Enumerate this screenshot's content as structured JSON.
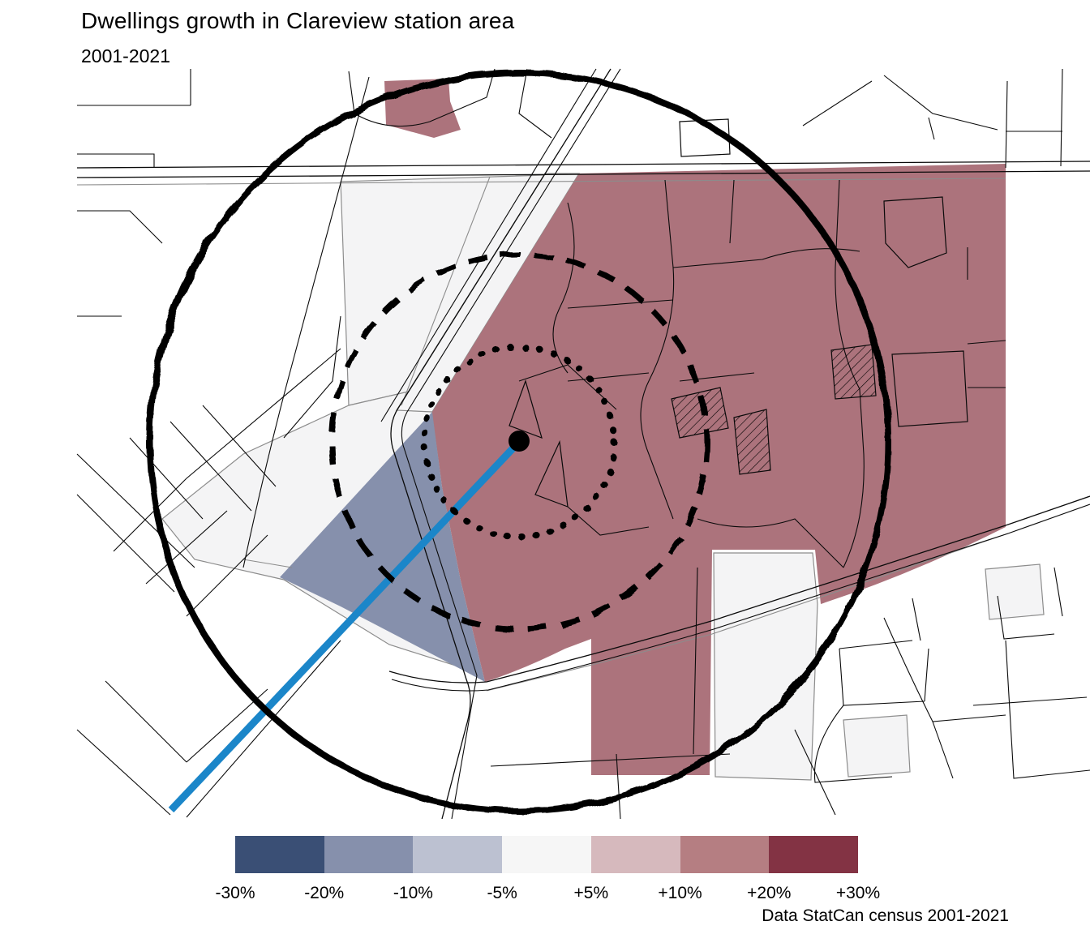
{
  "title": "Dwellings growth in Clareview station area",
  "subtitle": "2001-2021",
  "attribution": "Data StatCan census 2001-2021",
  "legend": {
    "bin_colors": [
      "#3A4F75",
      "#8690AC",
      "#BCC1D1",
      "#F6F6F6",
      "#D6B9BD",
      "#B57E82",
      "#833344"
    ],
    "tick_labels": [
      "-30%",
      "-20%",
      "-10%",
      "-5%",
      "+5%",
      "+10%",
      "+20%",
      "+30%"
    ]
  },
  "map": {
    "station_name": "Clareview station",
    "rings": [
      {
        "name": "inner-ring",
        "style": "dotted"
      },
      {
        "name": "middle-ring",
        "style": "dashed"
      },
      {
        "name": "outer-ring",
        "style": "solid"
      }
    ],
    "regions": [
      {
        "name": "northeast-growth-area",
        "class_label": "+10% to +20%"
      },
      {
        "name": "station-west-decline-area",
        "class_label": "-10% to -20%"
      },
      {
        "name": "north-small-growth-parcel",
        "class_label": "+10% to +20%"
      },
      {
        "name": "south-growth-tongue",
        "class_label": "+10% to +20%"
      },
      {
        "name": "neutral-areas",
        "class_label": "-5% to +5%"
      }
    ]
  },
  "colors": {
    "growth": "#AC737C",
    "decline": "#8690AC",
    "neutral": "#F4F4F5",
    "lrt": "#1B86C9",
    "road": "#0A0A0A",
    "boundary": "#8C8C8C",
    "ink": "#000000"
  }
}
